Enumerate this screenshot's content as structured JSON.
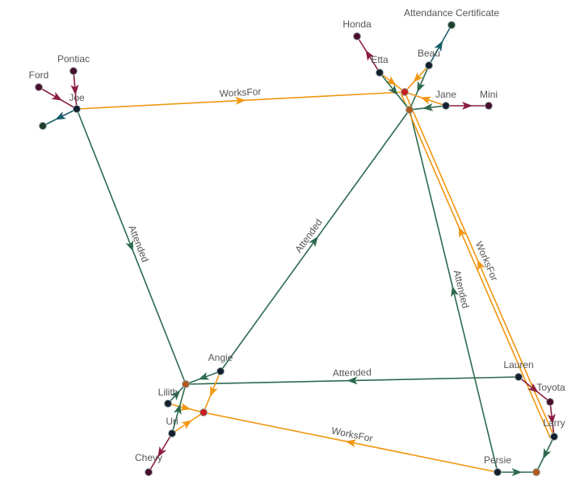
{
  "colors": {
    "WorksFor": "#f0960f",
    "Attended": "#2d6a4f",
    "owns": "#8b1e3f",
    "certificate": "#1b5e6b",
    "person_node": "#14202e",
    "car_node": "#4a0e2e",
    "company_node": "#c81e1e",
    "school_node": "#b05a1e",
    "certificate_node": "#1f3d2b"
  },
  "nodes": [
    {
      "id": "joe",
      "label": "Joe",
      "kind": "person_node"
    },
    {
      "id": "ford",
      "label": "Ford",
      "kind": "car_node"
    },
    {
      "id": "pontiac",
      "label": "Pontiac",
      "kind": "car_node"
    },
    {
      "id": "cert1",
      "label": "",
      "kind": "certificate_node"
    },
    {
      "id": "honda",
      "label": "Honda",
      "kind": "car_node"
    },
    {
      "id": "etta",
      "label": "Etta",
      "kind": "person_node"
    },
    {
      "id": "beau",
      "label": "Beau",
      "kind": "person_node"
    },
    {
      "id": "attcert",
      "label": "Attendance Certificate",
      "kind": "certificate_node"
    },
    {
      "id": "co1",
      "label": "",
      "kind": "company_node"
    },
    {
      "id": "sch1",
      "label": "",
      "kind": "school_node"
    },
    {
      "id": "jane",
      "label": "Jane",
      "kind": "person_node"
    },
    {
      "id": "mini",
      "label": "Mini",
      "kind": "car_node"
    },
    {
      "id": "angie",
      "label": "Angie",
      "kind": "person_node"
    },
    {
      "id": "sch2",
      "label": "",
      "kind": "school_node"
    },
    {
      "id": "lilith",
      "label": "Lilith",
      "kind": "person_node"
    },
    {
      "id": "co2",
      "label": "",
      "kind": "company_node"
    },
    {
      "id": "uri",
      "label": "Uri",
      "kind": "person_node"
    },
    {
      "id": "chevy",
      "label": "Chevy",
      "kind": "car_node"
    },
    {
      "id": "lauren",
      "label": "Lauren",
      "kind": "person_node"
    },
    {
      "id": "toyota",
      "label": "Toyota",
      "kind": "car_node"
    },
    {
      "id": "larry",
      "label": "Larry",
      "kind": "person_node"
    },
    {
      "id": "persie",
      "label": "Persie",
      "kind": "person_node"
    },
    {
      "id": "sch3",
      "label": "",
      "kind": "school_node"
    }
  ],
  "edges": [
    {
      "from": "pontiac",
      "to": "joe",
      "type": "owns",
      "label": ""
    },
    {
      "from": "ford",
      "to": "joe",
      "type": "owns",
      "label": ""
    },
    {
      "from": "joe",
      "to": "cert1",
      "type": "certificate",
      "label": ""
    },
    {
      "from": "joe",
      "to": "co1",
      "type": "WorksFor",
      "label": "WorksFor"
    },
    {
      "from": "joe",
      "to": "sch2",
      "type": "Attended",
      "label": "Attended"
    },
    {
      "from": "angie",
      "to": "sch1",
      "type": "Attended",
      "label": "Attended"
    },
    {
      "from": "lauren",
      "to": "sch2",
      "type": "Attended",
      "label": "Attended"
    },
    {
      "from": "persie",
      "to": "sch1",
      "type": "Attended",
      "label": "Attended"
    },
    {
      "from": "persie",
      "to": "co2",
      "type": "WorksFor",
      "label": "WorksFor"
    },
    {
      "from": "larry",
      "to": "co1",
      "type": "WorksFor",
      "label": "WorksFor"
    },
    {
      "from": "larry",
      "to": "co1",
      "type": "WorksFor",
      "label": ""
    },
    {
      "from": "etta",
      "to": "honda",
      "type": "owns",
      "label": ""
    },
    {
      "from": "etta",
      "to": "co1",
      "type": "WorksFor",
      "label": ""
    },
    {
      "from": "etta",
      "to": "sch1",
      "type": "Attended",
      "label": ""
    },
    {
      "from": "beau",
      "to": "attcert",
      "type": "certificate",
      "label": ""
    },
    {
      "from": "beau",
      "to": "co1",
      "type": "WorksFor",
      "label": ""
    },
    {
      "from": "beau",
      "to": "sch1",
      "type": "Attended",
      "label": ""
    },
    {
      "from": "jane",
      "to": "co1",
      "type": "WorksFor",
      "label": ""
    },
    {
      "from": "jane",
      "to": "sch1",
      "type": "Attended",
      "label": ""
    },
    {
      "from": "jane",
      "to": "mini",
      "type": "owns",
      "label": ""
    },
    {
      "from": "angie",
      "to": "sch2",
      "type": "Attended",
      "label": ""
    },
    {
      "from": "angie",
      "to": "co2",
      "type": "WorksFor",
      "label": ""
    },
    {
      "from": "lilith",
      "to": "sch2",
      "type": "Attended",
      "label": ""
    },
    {
      "from": "lilith",
      "to": "co2",
      "type": "WorksFor",
      "label": ""
    },
    {
      "from": "uri",
      "to": "sch2",
      "type": "Attended",
      "label": ""
    },
    {
      "from": "uri",
      "to": "co2",
      "type": "WorksFor",
      "label": ""
    },
    {
      "from": "uri",
      "to": "chevy",
      "type": "owns",
      "label": ""
    },
    {
      "from": "lauren",
      "to": "toyota",
      "type": "owns",
      "label": ""
    },
    {
      "from": "toyota",
      "to": "larry",
      "type": "owns",
      "label": ""
    },
    {
      "from": "larry",
      "to": "sch3",
      "type": "Attended",
      "label": ""
    },
    {
      "from": "persie",
      "to": "sch3",
      "type": "Attended",
      "label": ""
    }
  ]
}
